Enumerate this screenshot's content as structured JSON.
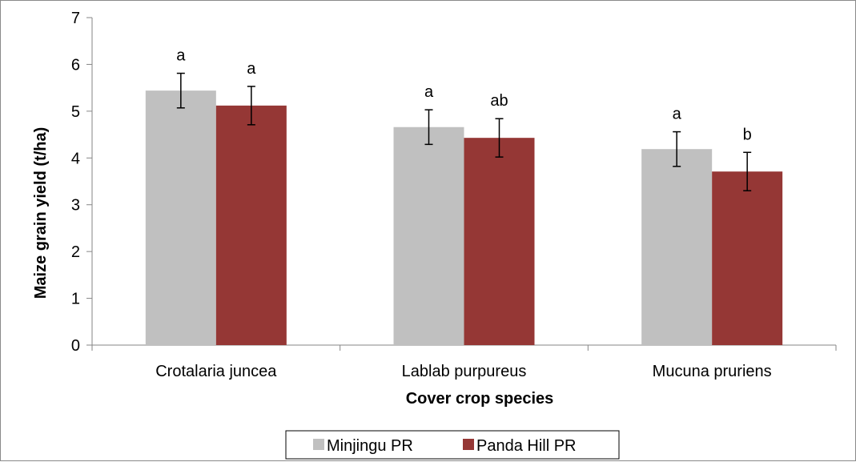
{
  "chart_data": {
    "type": "bar",
    "title": "",
    "xlabel": "Cover crop species",
    "ylabel": "Maize grain  yield (t/ha)",
    "ylim": [
      0,
      7
    ],
    "yticks": [
      "0",
      "1",
      "2",
      "3",
      "4",
      "5",
      "6",
      "7"
    ],
    "categories": [
      "Crotalaria juncea",
      "Lablab purpureus",
      "Mucuna pruriens"
    ],
    "series": [
      {
        "name": "Minjingu PR",
        "color": "#c0c0c0",
        "values": [
          5.44,
          4.66,
          4.19
        ],
        "error": [
          0.37,
          0.37,
          0.37
        ],
        "labels": [
          "a",
          "a",
          "a"
        ]
      },
      {
        "name": "Panda Hill PR",
        "color": "#953735",
        "values": [
          5.12,
          4.43,
          3.71
        ],
        "error": [
          0.41,
          0.41,
          0.41
        ],
        "labels": [
          "a",
          "ab",
          "b"
        ]
      }
    ],
    "legend_position": "bottom",
    "grid": false
  }
}
